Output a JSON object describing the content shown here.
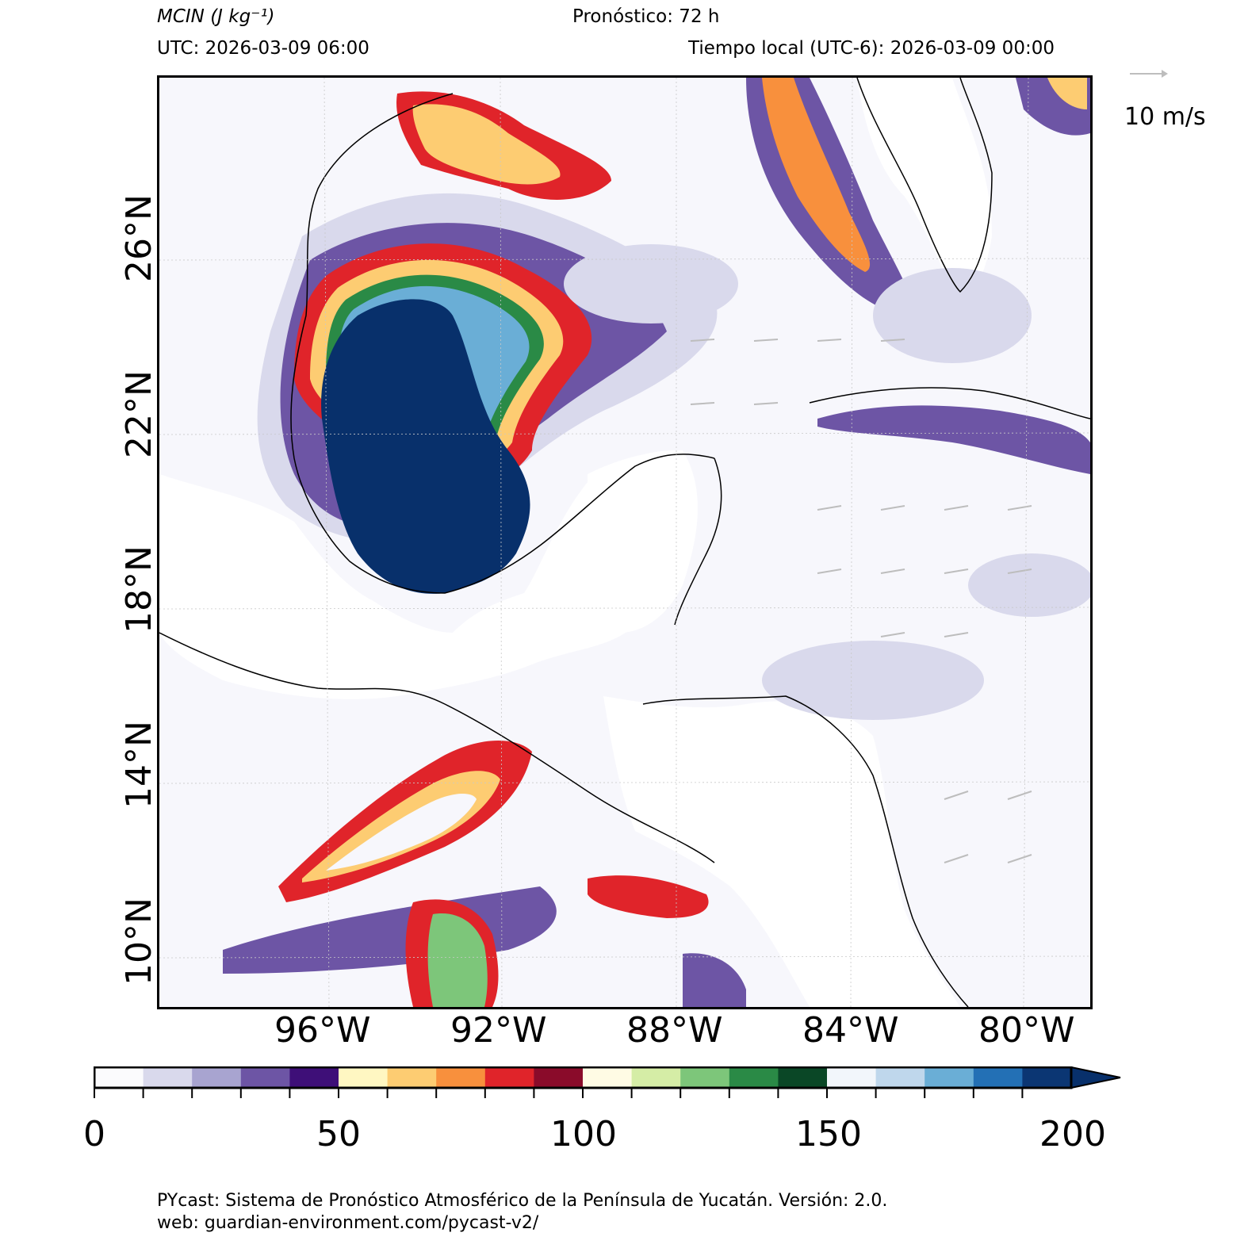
{
  "header": {
    "variable": "MCIN (J kg⁻¹)",
    "forecast": "Pronóstico: 72 h",
    "utc": "UTC:  2026-03-09 06:00",
    "local": "Tiempo local (UTC-6): 2026-03-09 00:00"
  },
  "axes": {
    "lat_labels": [
      "26°N",
      "22°N",
      "18°N",
      "14°N",
      "10°N"
    ],
    "lon_labels": [
      "96°W",
      "92°W",
      "88°W",
      "84°W",
      "80°W"
    ]
  },
  "wind_key": {
    "label": "10 m/s"
  },
  "colorbar": {
    "ticks": [
      "0",
      "50",
      "100",
      "150",
      "200"
    ],
    "range": [
      0,
      200
    ],
    "extend": "max",
    "colors": [
      "#fbfbfd",
      "#d9d9ec",
      "#a8a4d0",
      "#6d55a5",
      "#3e0f78",
      "#fff7c2",
      "#fdcc72",
      "#f8903d",
      "#e0242a",
      "#8a0b2a",
      "#fffbe4",
      "#d5eda6",
      "#7dc67a",
      "#2a8a46",
      "#0a4726",
      "#f2f6fb",
      "#bfd7ec",
      "#6aaed6",
      "#2370b5",
      "#0b3673",
      "#08306b"
    ]
  },
  "footer": {
    "line1": "PYcast: Sistema de Pronóstico Atmosférico de la Península de Yucatán. Versión: 2.0.",
    "line2": "web: guardian-environment.com/pycast-v2/"
  }
}
